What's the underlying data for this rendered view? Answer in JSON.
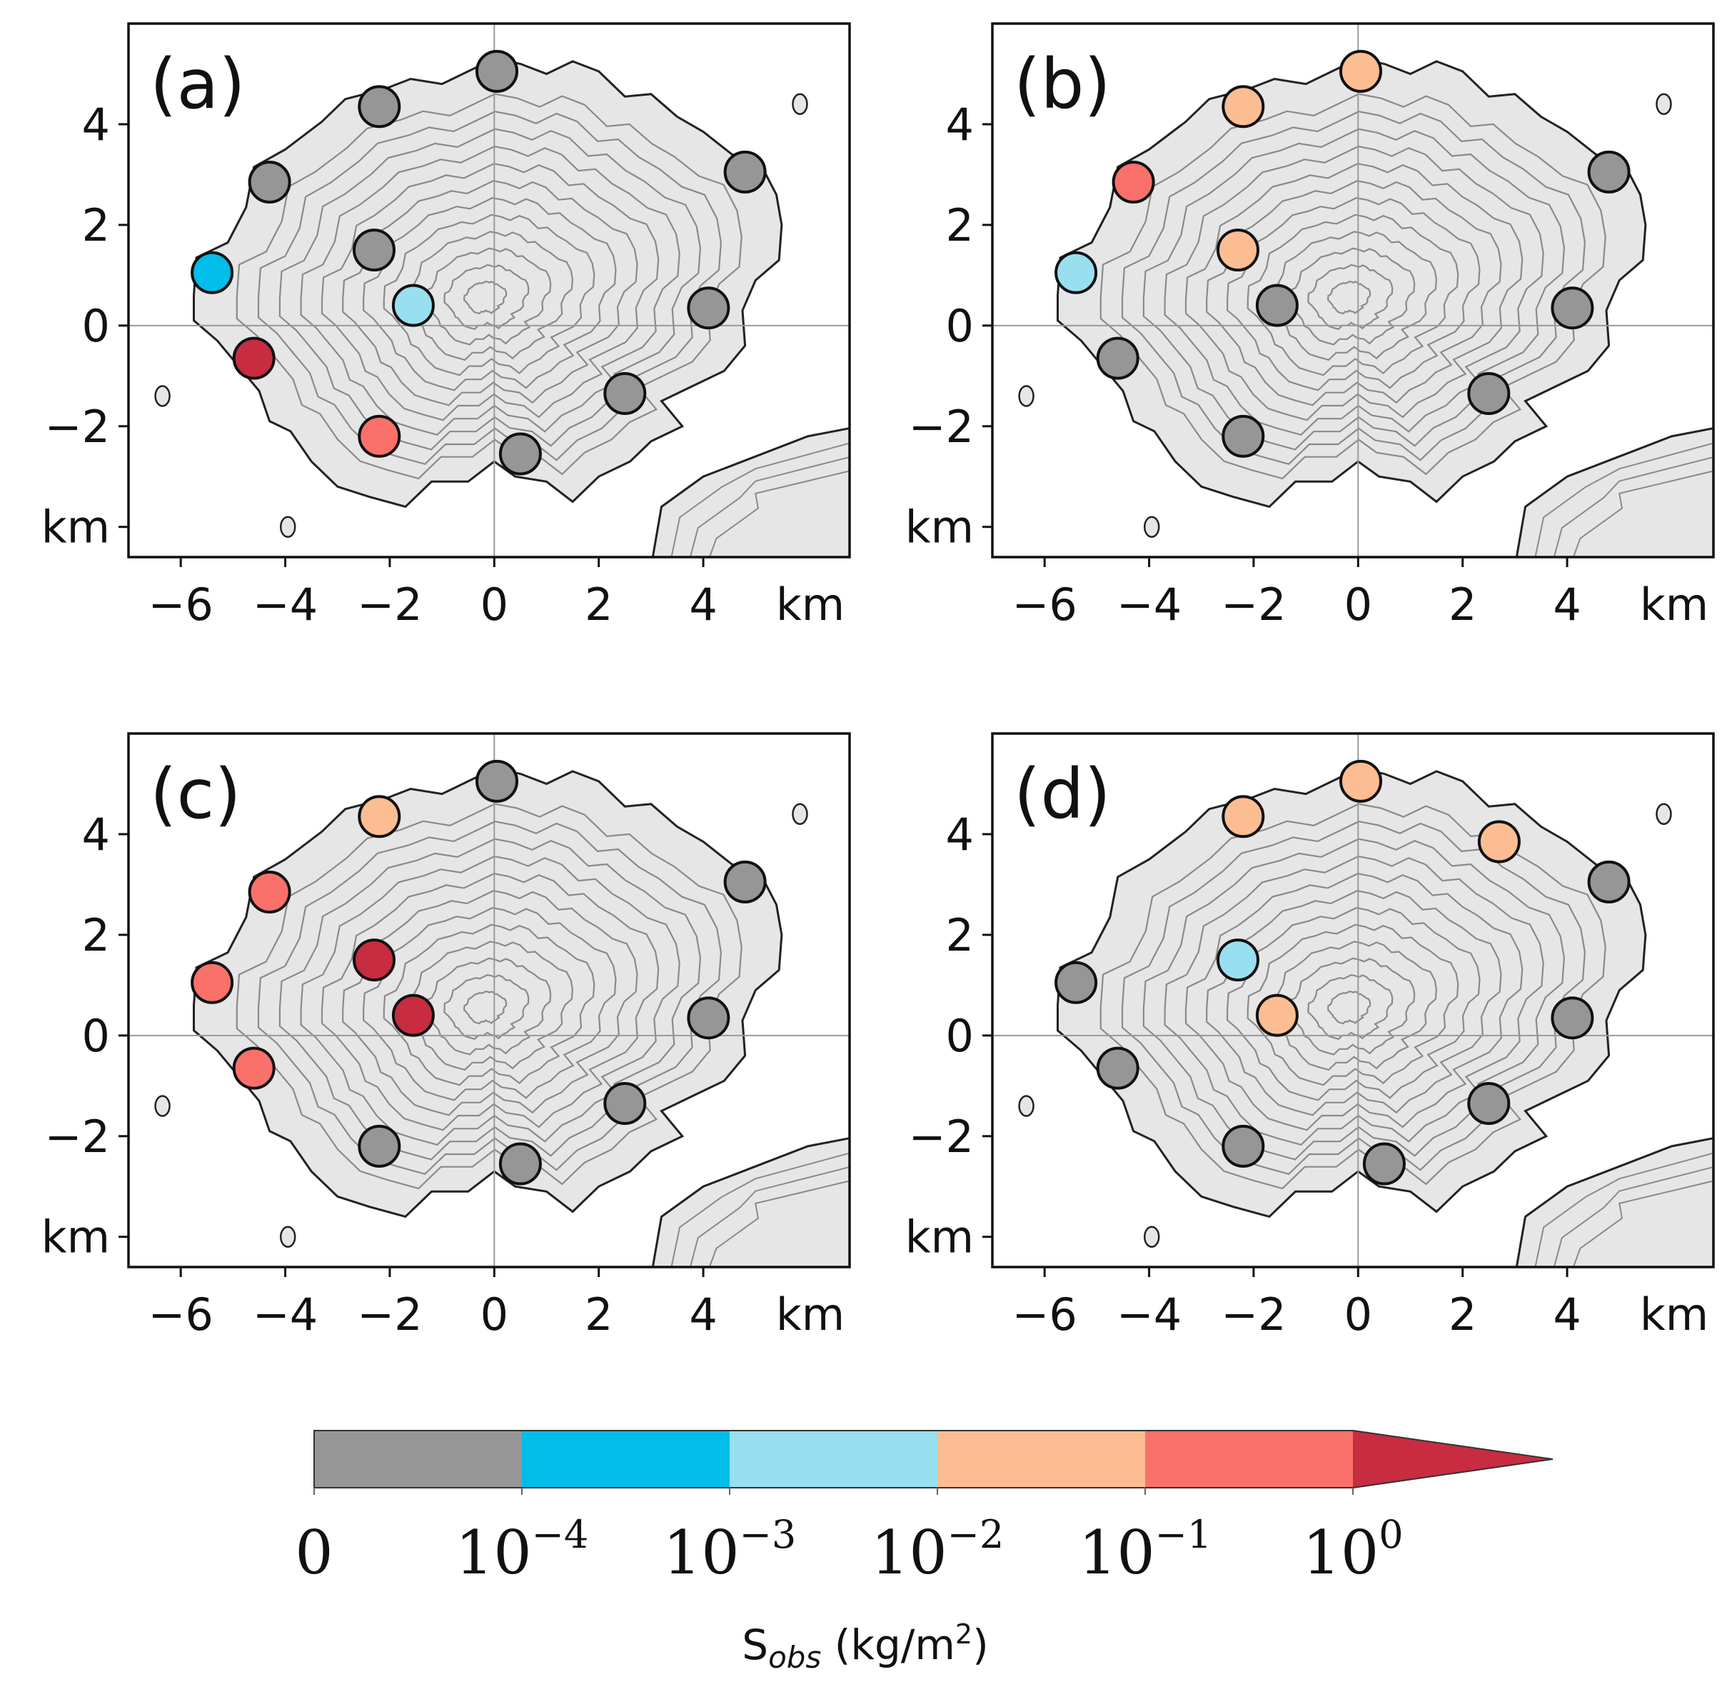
{
  "chart_data": [
    {
      "panel": "(a)",
      "type": "scatter",
      "xlim": [
        -7.0,
        6.8
      ],
      "ylim": [
        -4.6,
        6.0
      ],
      "xticks": [
        -6,
        -4,
        -2,
        0,
        2,
        4
      ],
      "yticks": [
        -4,
        -2,
        0,
        2,
        4
      ],
      "xunit": "km",
      "yunit": "km",
      "points": [
        {
          "x": 0.05,
          "y": 5.05,
          "bin": 0
        },
        {
          "x": -2.2,
          "y": 4.35,
          "bin": 0
        },
        {
          "x": -4.3,
          "y": 2.85,
          "bin": 0
        },
        {
          "x": 4.8,
          "y": 3.05,
          "bin": 0
        },
        {
          "x": -2.3,
          "y": 1.5,
          "bin": 0
        },
        {
          "x": -5.4,
          "y": 1.05,
          "bin": 1
        },
        {
          "x": -1.55,
          "y": 0.4,
          "bin": 2
        },
        {
          "x": 4.1,
          "y": 0.35,
          "bin": 0
        },
        {
          "x": -4.6,
          "y": -0.65,
          "bin": 5
        },
        {
          "x": 2.5,
          "y": -1.35,
          "bin": 0
        },
        {
          "x": -2.2,
          "y": -2.2,
          "bin": 4
        },
        {
          "x": 0.5,
          "y": -2.55,
          "bin": 0
        }
      ]
    },
    {
      "panel": "(b)",
      "type": "scatter",
      "xlim": [
        -7.0,
        6.8
      ],
      "ylim": [
        -4.6,
        6.0
      ],
      "xticks": [
        -6,
        -4,
        -2,
        0,
        2,
        4
      ],
      "yticks": [
        -4,
        -2,
        0,
        2,
        4
      ],
      "xunit": "km",
      "yunit": "km",
      "points": [
        {
          "x": 0.05,
          "y": 5.05,
          "bin": 3
        },
        {
          "x": -2.2,
          "y": 4.35,
          "bin": 3
        },
        {
          "x": -4.3,
          "y": 2.85,
          "bin": 4
        },
        {
          "x": 4.8,
          "y": 3.05,
          "bin": 0
        },
        {
          "x": -2.3,
          "y": 1.5,
          "bin": 3
        },
        {
          "x": -5.4,
          "y": 1.05,
          "bin": 2
        },
        {
          "x": -1.55,
          "y": 0.4,
          "bin": 0
        },
        {
          "x": 4.1,
          "y": 0.35,
          "bin": 0
        },
        {
          "x": -4.6,
          "y": -0.65,
          "bin": 0
        },
        {
          "x": 2.5,
          "y": -1.35,
          "bin": 0
        },
        {
          "x": -2.2,
          "y": -2.2,
          "bin": 0
        }
      ]
    },
    {
      "panel": "(c)",
      "type": "scatter",
      "xlim": [
        -7.0,
        6.8
      ],
      "ylim": [
        -4.6,
        6.0
      ],
      "xticks": [
        -6,
        -4,
        -2,
        0,
        2,
        4
      ],
      "yticks": [
        -4,
        -2,
        0,
        2,
        4
      ],
      "xunit": "km",
      "yunit": "km",
      "points": [
        {
          "x": 0.05,
          "y": 5.05,
          "bin": 0
        },
        {
          "x": -2.2,
          "y": 4.35,
          "bin": 3
        },
        {
          "x": -4.3,
          "y": 2.85,
          "bin": 4
        },
        {
          "x": 4.8,
          "y": 3.05,
          "bin": 0
        },
        {
          "x": -2.3,
          "y": 1.5,
          "bin": 5
        },
        {
          "x": -5.4,
          "y": 1.05,
          "bin": 4
        },
        {
          "x": -1.55,
          "y": 0.4,
          "bin": 5
        },
        {
          "x": 4.1,
          "y": 0.35,
          "bin": 0
        },
        {
          "x": -4.6,
          "y": -0.65,
          "bin": 4
        },
        {
          "x": 2.5,
          "y": -1.35,
          "bin": 0
        },
        {
          "x": -2.2,
          "y": -2.2,
          "bin": 0
        },
        {
          "x": 0.5,
          "y": -2.55,
          "bin": 0
        }
      ]
    },
    {
      "panel": "(d)",
      "type": "scatter",
      "xlim": [
        -7.0,
        6.8
      ],
      "ylim": [
        -4.6,
        6.0
      ],
      "xticks": [
        -6,
        -4,
        -2,
        0,
        2,
        4
      ],
      "yticks": [
        -4,
        -2,
        0,
        2,
        4
      ],
      "xunit": "km",
      "yunit": "km",
      "points": [
        {
          "x": 0.05,
          "y": 5.05,
          "bin": 3
        },
        {
          "x": -2.2,
          "y": 4.35,
          "bin": 3
        },
        {
          "x": 2.7,
          "y": 3.85,
          "bin": 3
        },
        {
          "x": 4.8,
          "y": 3.05,
          "bin": 0
        },
        {
          "x": -2.3,
          "y": 1.5,
          "bin": 2
        },
        {
          "x": -5.4,
          "y": 1.05,
          "bin": 0
        },
        {
          "x": -1.55,
          "y": 0.4,
          "bin": 3
        },
        {
          "x": 4.1,
          "y": 0.35,
          "bin": 0
        },
        {
          "x": -4.6,
          "y": -0.65,
          "bin": 0
        },
        {
          "x": 2.5,
          "y": -1.35,
          "bin": 0
        },
        {
          "x": -2.2,
          "y": -2.2,
          "bin": 0
        },
        {
          "x": 0.5,
          "y": -2.55,
          "bin": 0
        }
      ]
    }
  ],
  "colorbar": {
    "title_main": "S",
    "title_sub": "obs",
    "title_unit": " (kg/m",
    "title_sup": "2",
    "title_close": ")",
    "bins": [
      {
        "color": "#969696"
      },
      {
        "color": "#00bdea"
      },
      {
        "color": "#98dfef"
      },
      {
        "color": "#fdbd92"
      },
      {
        "color": "#fa706b"
      },
      {
        "color": "#c82c40"
      }
    ],
    "labels": [
      {
        "base": "0",
        "exp": ""
      },
      {
        "base": "10",
        "exp": "−4"
      },
      {
        "base": "10",
        "exp": "−3"
      },
      {
        "base": "10",
        "exp": "−2"
      },
      {
        "base": "10",
        "exp": "−1"
      },
      {
        "base": "10",
        "exp": "0"
      }
    ]
  },
  "colors": {
    "land": "#e6e6e6",
    "coast": "#222222",
    "contour": "#8a8a8a",
    "axis_line": "#9a9a9a"
  }
}
